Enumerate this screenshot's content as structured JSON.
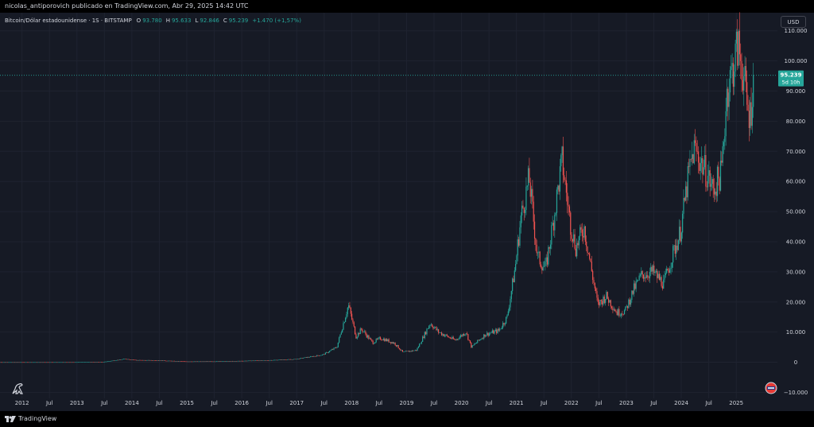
{
  "header": {
    "publisher_text": "nicolas_antiporovich publicado en TradingView.com, Abr 29, 2025 14:42 UTC"
  },
  "legend": {
    "symbol": "Bitcoin/Dólar estadounidense · 1S · BITSTAMP",
    "o_label": "O",
    "o_value": "93.780",
    "h_label": "H",
    "h_value": "95.633",
    "l_label": "L",
    "l_value": "92.846",
    "c_label": "C",
    "c_value": "95.239",
    "change": "+1.470 (+1,57%)"
  },
  "currency_button": "USD",
  "price_badge": {
    "price": "95.239",
    "countdown": "5d 10h"
  },
  "footer": {
    "brand": "TradingView"
  },
  "colors": {
    "up": "#26a69a",
    "down": "#ef5350",
    "badge": "#26a69a",
    "grid": "#1f2330",
    "background": "#161a25",
    "axis_text": "#d1d4dc"
  },
  "chart_data": {
    "type": "candlestick",
    "ylim": [
      -12000,
      116000
    ],
    "y_ticks": [
      {
        "value": 110000,
        "label": "110.000"
      },
      {
        "value": 100000,
        "label": "100.000"
      },
      {
        "value": 90000,
        "label": "90.000"
      },
      {
        "value": 80000,
        "label": "80.000"
      },
      {
        "value": 70000,
        "label": "70.000"
      },
      {
        "value": 60000,
        "label": "60.000"
      },
      {
        "value": 50000,
        "label": "50.000"
      },
      {
        "value": 40000,
        "label": "40.000"
      },
      {
        "value": 30000,
        "label": "30.000"
      },
      {
        "value": 20000,
        "label": "20.000"
      },
      {
        "value": 10000,
        "label": "10.000"
      },
      {
        "value": 0,
        "label": "0"
      },
      {
        "value": -10000,
        "label": "−10.000"
      }
    ],
    "x_ticks": [
      {
        "t": 2012.0,
        "label": "2012"
      },
      {
        "t": 2012.5,
        "label": "Jul"
      },
      {
        "t": 2013.0,
        "label": "2013"
      },
      {
        "t": 2013.5,
        "label": "Jul"
      },
      {
        "t": 2014.0,
        "label": "2014"
      },
      {
        "t": 2014.5,
        "label": "Jul"
      },
      {
        "t": 2015.0,
        "label": "2015"
      },
      {
        "t": 2015.5,
        "label": "Jul"
      },
      {
        "t": 2016.0,
        "label": "2016"
      },
      {
        "t": 2016.5,
        "label": "Jul"
      },
      {
        "t": 2017.0,
        "label": "2017"
      },
      {
        "t": 2017.5,
        "label": "Jul"
      },
      {
        "t": 2018.0,
        "label": "2018"
      },
      {
        "t": 2018.5,
        "label": "Jul"
      },
      {
        "t": 2019.0,
        "label": "2019"
      },
      {
        "t": 2019.5,
        "label": "Jul"
      },
      {
        "t": 2020.0,
        "label": "2020"
      },
      {
        "t": 2020.5,
        "label": "Jul"
      },
      {
        "t": 2021.0,
        "label": "2021"
      },
      {
        "t": 2021.5,
        "label": "Jul"
      },
      {
        "t": 2022.0,
        "label": "2022"
      },
      {
        "t": 2022.5,
        "label": "Jul"
      },
      {
        "t": 2023.0,
        "label": "2023"
      },
      {
        "t": 2023.5,
        "label": "Jul"
      },
      {
        "t": 2024.0,
        "label": "2024"
      },
      {
        "t": 2024.5,
        "label": "Jul"
      },
      {
        "t": 2025.0,
        "label": "2025"
      }
    ],
    "last_price": 95239,
    "price_path": [
      {
        "t": 2011.6,
        "p": 5
      },
      {
        "t": 2012.5,
        "p": 7
      },
      {
        "t": 2013.0,
        "p": 14
      },
      {
        "t": 2013.3,
        "p": 120
      },
      {
        "t": 2013.5,
        "p": 90
      },
      {
        "t": 2013.9,
        "p": 1100
      },
      {
        "t": 2014.1,
        "p": 700
      },
      {
        "t": 2014.5,
        "p": 600
      },
      {
        "t": 2015.0,
        "p": 250
      },
      {
        "t": 2015.5,
        "p": 270
      },
      {
        "t": 2016.0,
        "p": 430
      },
      {
        "t": 2016.5,
        "p": 650
      },
      {
        "t": 2017.0,
        "p": 1000
      },
      {
        "t": 2017.5,
        "p": 2500
      },
      {
        "t": 2017.75,
        "p": 5000
      },
      {
        "t": 2017.96,
        "p": 19000
      },
      {
        "t": 2018.1,
        "p": 8500
      },
      {
        "t": 2018.2,
        "p": 11000
      },
      {
        "t": 2018.4,
        "p": 6500
      },
      {
        "t": 2018.55,
        "p": 8000
      },
      {
        "t": 2018.8,
        "p": 6300
      },
      {
        "t": 2018.95,
        "p": 3300
      },
      {
        "t": 2019.2,
        "p": 4000
      },
      {
        "t": 2019.45,
        "p": 13000
      },
      {
        "t": 2019.6,
        "p": 10000
      },
      {
        "t": 2019.9,
        "p": 7300
      },
      {
        "t": 2020.1,
        "p": 10000
      },
      {
        "t": 2020.2,
        "p": 5000
      },
      {
        "t": 2020.45,
        "p": 9200
      },
      {
        "t": 2020.7,
        "p": 10500
      },
      {
        "t": 2020.85,
        "p": 15000
      },
      {
        "t": 2021.0,
        "p": 32000
      },
      {
        "t": 2021.1,
        "p": 48000
      },
      {
        "t": 2021.25,
        "p": 61000
      },
      {
        "t": 2021.4,
        "p": 35000
      },
      {
        "t": 2021.55,
        "p": 31000
      },
      {
        "t": 2021.7,
        "p": 48000
      },
      {
        "t": 2021.85,
        "p": 67000
      },
      {
        "t": 2022.0,
        "p": 46000
      },
      {
        "t": 2022.1,
        "p": 38000
      },
      {
        "t": 2022.25,
        "p": 45000
      },
      {
        "t": 2022.4,
        "p": 29000
      },
      {
        "t": 2022.5,
        "p": 19000
      },
      {
        "t": 2022.65,
        "p": 22000
      },
      {
        "t": 2022.85,
        "p": 16500
      },
      {
        "t": 2023.0,
        "p": 17000
      },
      {
        "t": 2023.15,
        "p": 24000
      },
      {
        "t": 2023.3,
        "p": 29000
      },
      {
        "t": 2023.5,
        "p": 30000
      },
      {
        "t": 2023.7,
        "p": 26000
      },
      {
        "t": 2023.85,
        "p": 35000
      },
      {
        "t": 2024.0,
        "p": 43000
      },
      {
        "t": 2024.15,
        "p": 62000
      },
      {
        "t": 2024.25,
        "p": 71000
      },
      {
        "t": 2024.5,
        "p": 62000
      },
      {
        "t": 2024.6,
        "p": 57000
      },
      {
        "t": 2024.75,
        "p": 63000
      },
      {
        "t": 2024.85,
        "p": 90000
      },
      {
        "t": 2024.95,
        "p": 97000
      },
      {
        "t": 2025.05,
        "p": 105000
      },
      {
        "t": 2025.15,
        "p": 96000
      },
      {
        "t": 2025.22,
        "p": 84000
      },
      {
        "t": 2025.28,
        "p": 82000
      },
      {
        "t": 2025.33,
        "p": 95239
      }
    ]
  }
}
